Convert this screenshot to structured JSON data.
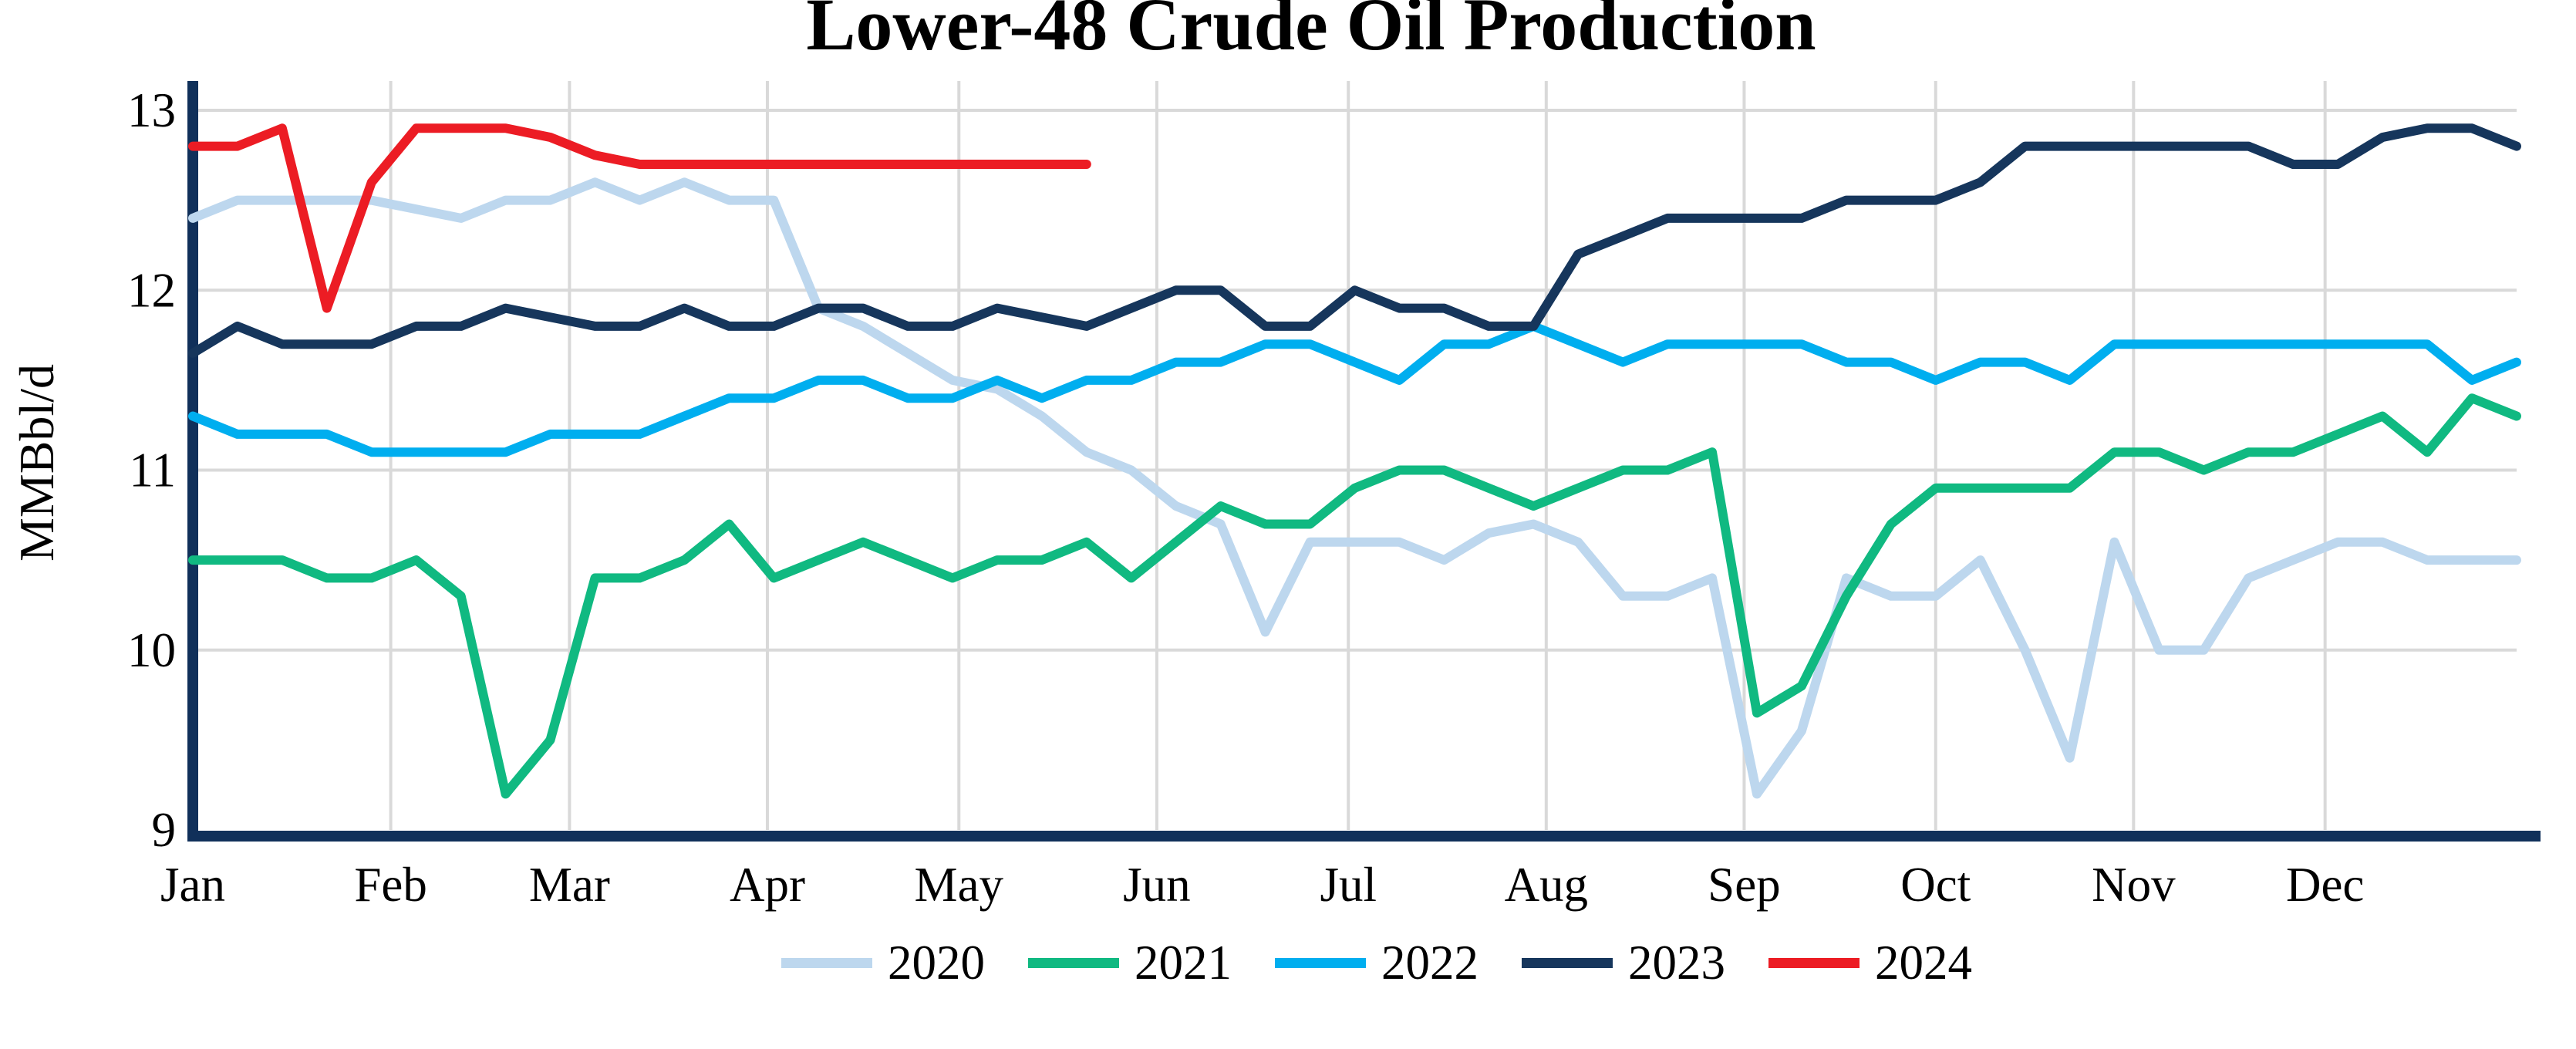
{
  "chart_data": {
    "type": "line",
    "title": "Lower-48 Crude Oil Production",
    "ylabel": "MMBbl/d",
    "ylim": [
      9,
      13
    ],
    "yticks": [
      9,
      10,
      11,
      12,
      13
    ],
    "x_ticklabels": [
      "Jan",
      "Feb",
      "Mar",
      "Apr",
      "May",
      "Jun",
      "Jul",
      "Aug",
      "Sep",
      "Oct",
      "Nov",
      "Dec"
    ],
    "x_unit": "week of year (52 weeks span Jan-Dec)",
    "grid": true,
    "legend_position": "bottom",
    "series": [
      {
        "name": "2020",
        "color": "#BDD7EE",
        "values": [
          12.4,
          12.5,
          12.5,
          12.5,
          12.5,
          12.45,
          12.4,
          12.5,
          12.5,
          12.6,
          12.5,
          12.6,
          12.5,
          12.5,
          11.9,
          11.8,
          11.65,
          11.5,
          11.45,
          11.3,
          11.1,
          11.0,
          10.8,
          10.7,
          10.1,
          10.6,
          10.6,
          10.6,
          10.5,
          10.65,
          10.7,
          10.6,
          10.3,
          10.3,
          10.4,
          9.2,
          9.55,
          10.4,
          10.3,
          10.3,
          10.5,
          10.0,
          9.4,
          10.6,
          10.0,
          10.0,
          10.4,
          10.5,
          10.6,
          10.6,
          10.5,
          10.5,
          10.5
        ]
      },
      {
        "name": "2021",
        "color": "#10B981",
        "values": [
          10.5,
          10.5,
          10.5,
          10.4,
          10.4,
          10.5,
          10.3,
          9.2,
          9.5,
          10.4,
          10.4,
          10.5,
          10.7,
          10.4,
          10.5,
          10.6,
          10.5,
          10.4,
          10.5,
          10.5,
          10.6,
          10.4,
          10.6,
          10.8,
          10.7,
          10.7,
          10.9,
          11.0,
          11.0,
          10.9,
          10.8,
          10.9,
          11.0,
          11.0,
          11.1,
          9.65,
          9.8,
          10.3,
          10.7,
          10.9,
          10.9,
          10.9,
          10.9,
          11.1,
          11.1,
          11.0,
          11.1,
          11.1,
          11.2,
          11.3,
          11.1,
          11.4,
          11.3
        ]
      },
      {
        "name": "2022",
        "color": "#00AEEF",
        "values": [
          11.3,
          11.2,
          11.2,
          11.2,
          11.1,
          11.1,
          11.1,
          11.1,
          11.2,
          11.2,
          11.2,
          11.3,
          11.4,
          11.4,
          11.5,
          11.5,
          11.4,
          11.4,
          11.5,
          11.4,
          11.5,
          11.5,
          11.6,
          11.6,
          11.7,
          11.7,
          11.6,
          11.5,
          11.7,
          11.7,
          11.8,
          11.7,
          11.6,
          11.7,
          11.7,
          11.7,
          11.7,
          11.6,
          11.6,
          11.5,
          11.6,
          11.6,
          11.5,
          11.7,
          11.7,
          11.7,
          11.7,
          11.7,
          11.7,
          11.7,
          11.7,
          11.5,
          11.6
        ]
      },
      {
        "name": "2023",
        "color": "#16365C",
        "values": [
          11.65,
          11.8,
          11.7,
          11.7,
          11.7,
          11.8,
          11.8,
          11.9,
          11.85,
          11.8,
          11.8,
          11.9,
          11.8,
          11.8,
          11.9,
          11.9,
          11.8,
          11.8,
          11.9,
          11.85,
          11.8,
          11.9,
          12.0,
          12.0,
          11.8,
          11.8,
          12.0,
          11.9,
          11.9,
          11.8,
          11.8,
          12.2,
          12.3,
          12.4,
          12.4,
          12.4,
          12.4,
          12.5,
          12.5,
          12.5,
          12.6,
          12.8,
          12.8,
          12.8,
          12.8,
          12.8,
          12.8,
          12.7,
          12.7,
          12.85,
          12.9,
          12.9,
          12.8
        ]
      },
      {
        "name": "2024",
        "color": "#EC1C24",
        "values": [
          12.8,
          12.8,
          12.9,
          11.9,
          12.6,
          12.9,
          12.9,
          12.9,
          12.85,
          12.75,
          12.7,
          12.7,
          12.7,
          12.7,
          12.7,
          12.7,
          12.7,
          12.7,
          12.7,
          12.7,
          12.7
        ]
      }
    ]
  },
  "colors": {
    "axis": "#10305A",
    "gridline": "#D9D9D9",
    "text": "#000000",
    "background": "#FFFFFF"
  }
}
